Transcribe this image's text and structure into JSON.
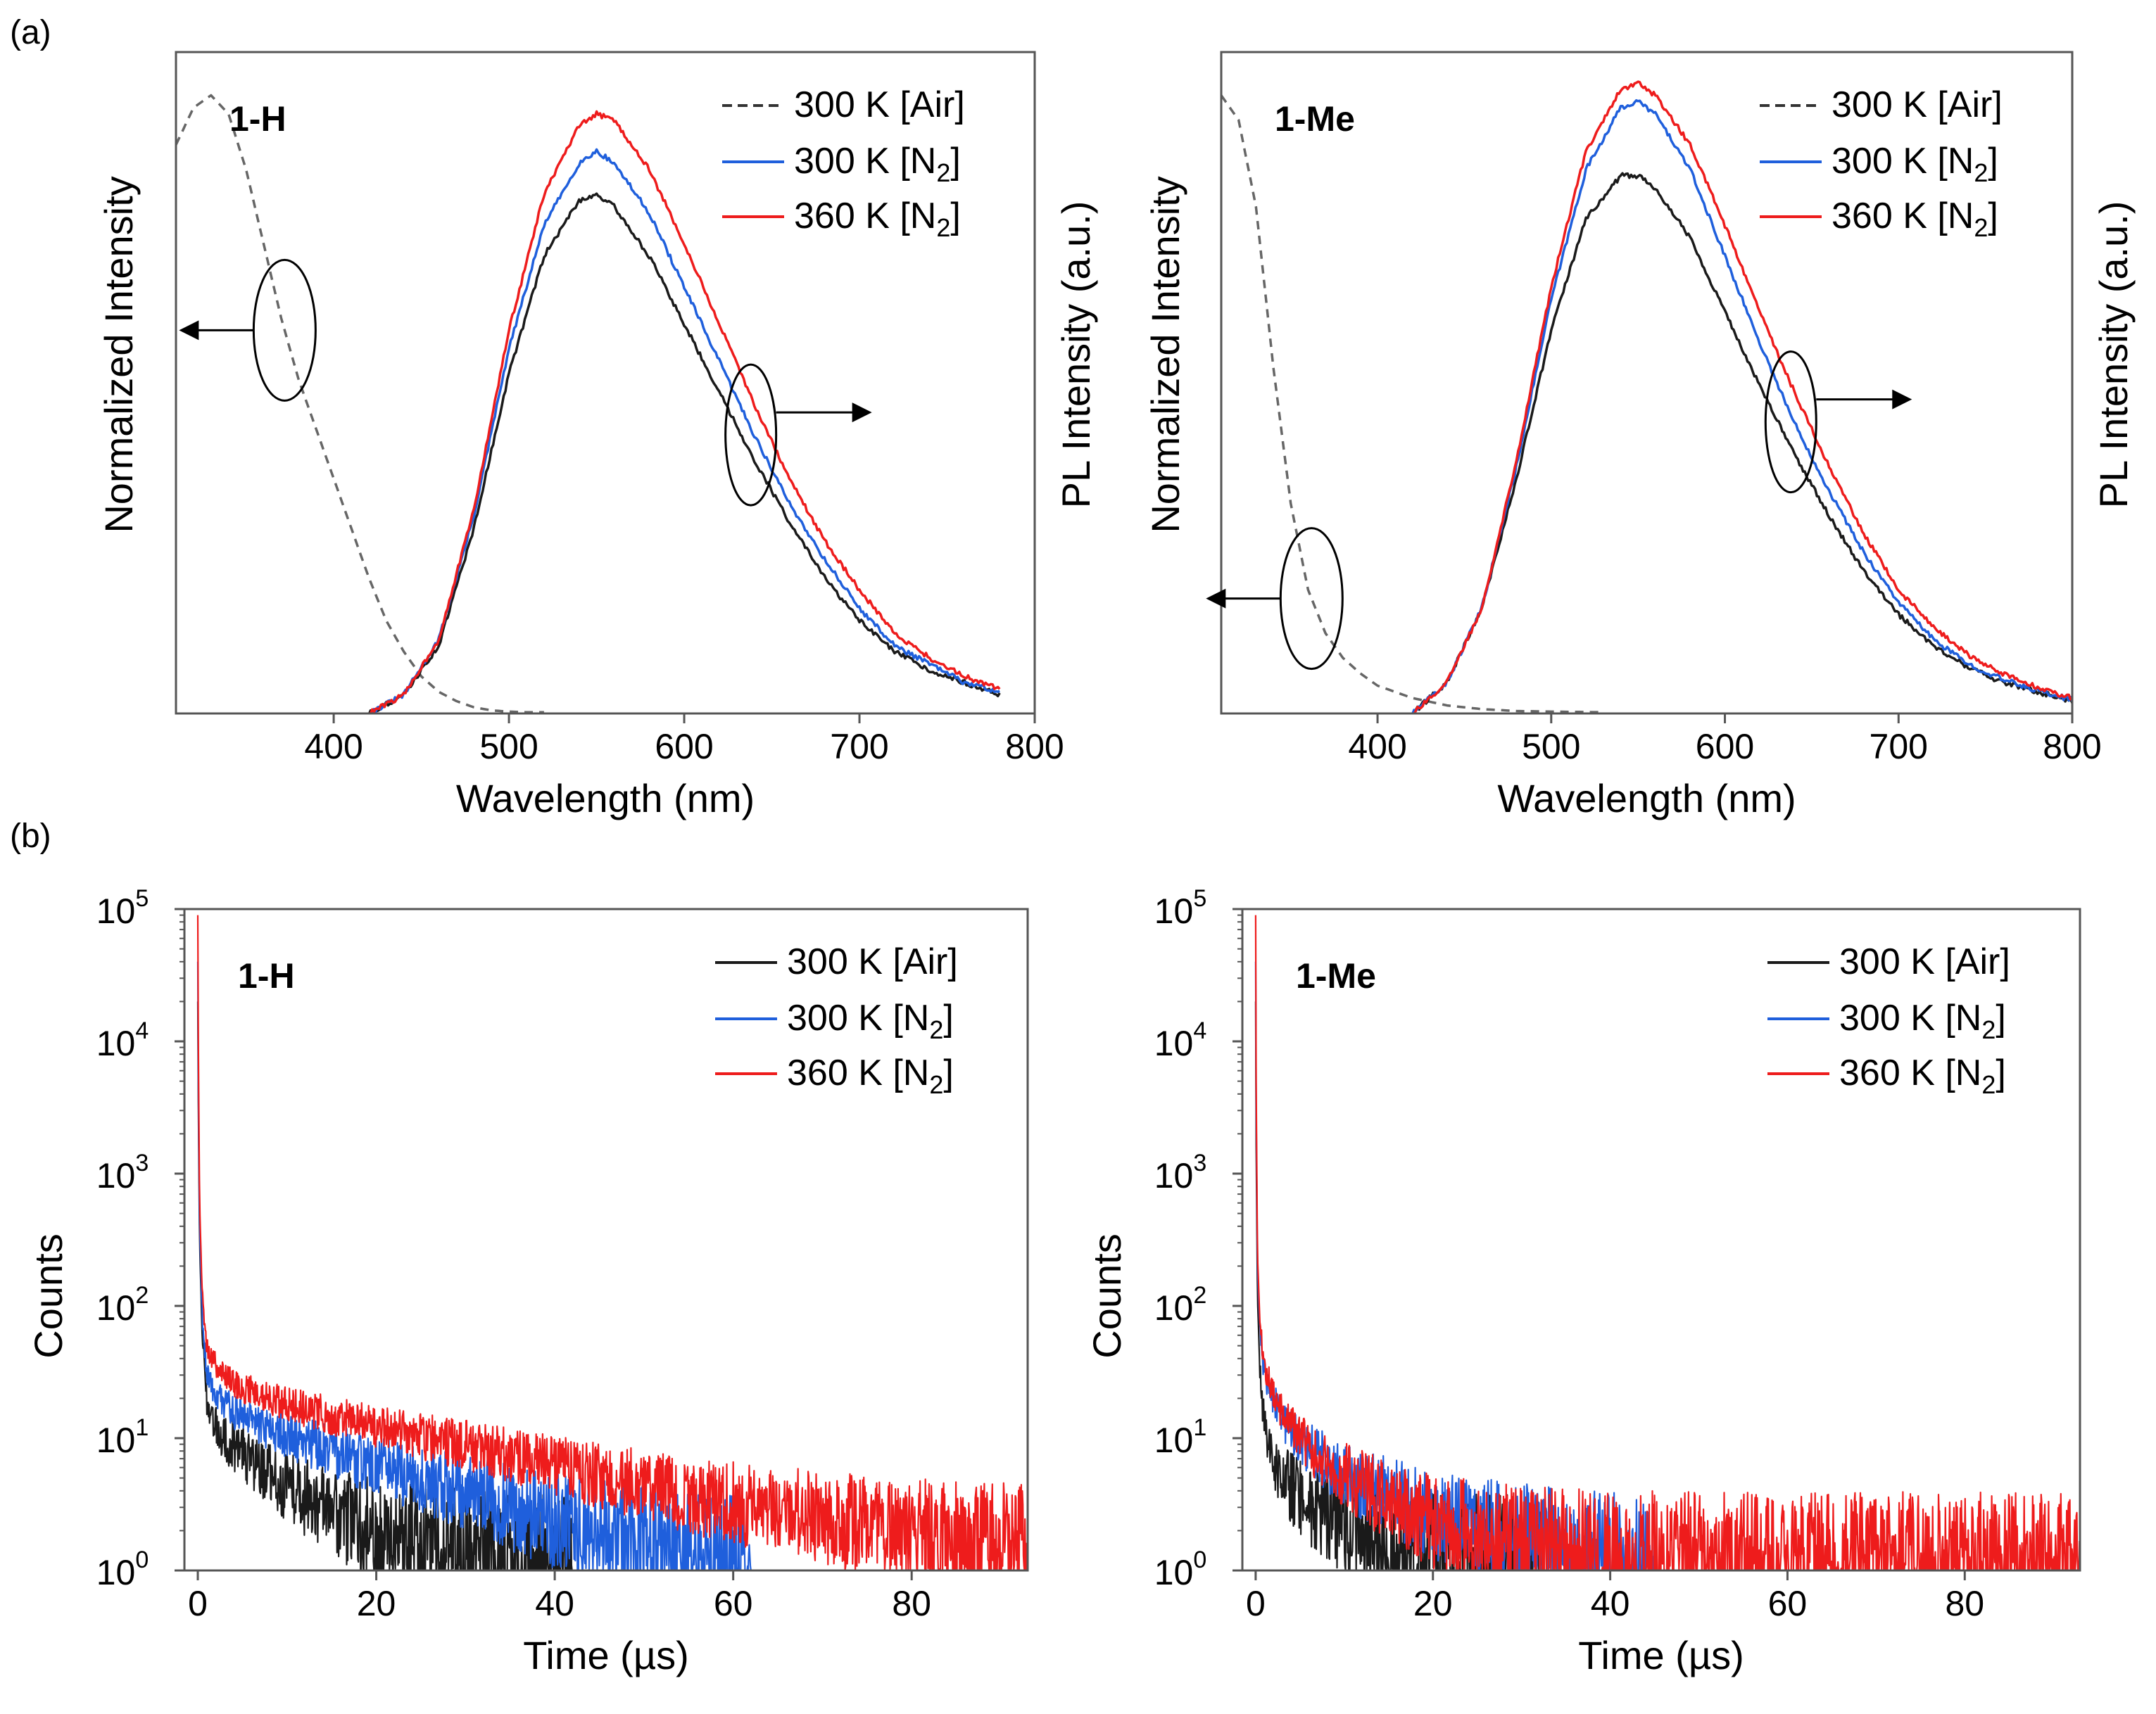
{
  "panel_labels": {
    "a": "(a)",
    "b": "(b)"
  },
  "colors": {
    "air": "#1a1a1a",
    "n2_300": "#1f5fdc",
    "n2_360": "#ee1c1c",
    "absorption": "#666666"
  },
  "chart_data": [
    {
      "id": "a-1H",
      "type": "line",
      "sample": "1-H",
      "xlabel": "Wavelength (nm)",
      "ylabel_left": "Normalized Intensity",
      "ylabel_right": "PL Intensity (a.u.)",
      "xlim": [
        310,
        800
      ],
      "ylim": [
        0,
        1.07
      ],
      "xticks": [
        "400",
        "500",
        "600",
        "700",
        "800"
      ],
      "xtick_values": [
        400,
        500,
        600,
        700,
        800
      ],
      "legend": [
        {
          "text": "300 K [Air]",
          "style": "dashed"
        },
        {
          "text": "300 K [N",
          "sub": "2",
          "close": "]",
          "style": "solid"
        },
        {
          "text": "360 K [N",
          "sub": "2",
          "close": "]",
          "style": "solid"
        }
      ],
      "annotations": [
        "absorption curve circled, arrow points to left axis",
        "emission curves circled, arrow points to right axis"
      ],
      "series": [
        {
          "name": "Absorption (300 K [Air])",
          "style": "dashed",
          "color_key": "absorption",
          "x": [
            310,
            320,
            330,
            340,
            350,
            360,
            370,
            380,
            390,
            400,
            410,
            420,
            430,
            440,
            450,
            460,
            470,
            480,
            490,
            500,
            510,
            520
          ],
          "y": [
            0.92,
            0.98,
            1.0,
            0.97,
            0.88,
            0.76,
            0.64,
            0.54,
            0.46,
            0.38,
            0.3,
            0.22,
            0.15,
            0.1,
            0.06,
            0.035,
            0.02,
            0.01,
            0.005,
            0.003,
            0.002,
            0.002
          ]
        },
        {
          "name": "300 K [Air]",
          "style": "solid",
          "color_key": "air",
          "x": [
            420,
            440,
            460,
            480,
            500,
            520,
            540,
            550,
            560,
            580,
            600,
            620,
            640,
            660,
            680,
            700,
            720,
            740,
            760,
            780
          ],
          "y": [
            0.0,
            0.03,
            0.11,
            0.3,
            0.55,
            0.74,
            0.83,
            0.84,
            0.82,
            0.74,
            0.63,
            0.52,
            0.41,
            0.31,
            0.22,
            0.15,
            0.1,
            0.07,
            0.05,
            0.03
          ]
        },
        {
          "name": "300 K [N2]",
          "style": "solid",
          "color_key": "n2_300",
          "x": [
            420,
            440,
            460,
            480,
            500,
            520,
            540,
            550,
            560,
            580,
            600,
            620,
            640,
            660,
            680,
            700,
            720,
            740,
            760,
            780
          ],
          "y": [
            0.0,
            0.03,
            0.12,
            0.32,
            0.59,
            0.79,
            0.89,
            0.91,
            0.89,
            0.81,
            0.69,
            0.57,
            0.45,
            0.34,
            0.25,
            0.17,
            0.11,
            0.08,
            0.05,
            0.035
          ]
        },
        {
          "name": "360 K [N2]",
          "style": "solid",
          "color_key": "n2_360",
          "x": [
            420,
            440,
            460,
            480,
            500,
            520,
            540,
            550,
            560,
            580,
            600,
            620,
            640,
            660,
            680,
            700,
            720,
            740,
            760,
            780
          ],
          "y": [
            0.0,
            0.03,
            0.12,
            0.33,
            0.62,
            0.84,
            0.95,
            0.97,
            0.96,
            0.88,
            0.76,
            0.63,
            0.5,
            0.38,
            0.28,
            0.2,
            0.13,
            0.09,
            0.06,
            0.04
          ]
        }
      ]
    },
    {
      "id": "a-1Me",
      "type": "line",
      "sample": "1-Me",
      "xlabel": "Wavelength (nm)",
      "ylabel_left": "Normalized Intensity",
      "ylabel_right": "PL Intensity (a.u.)",
      "xlim": [
        310,
        800
      ],
      "ylim": [
        0,
        1.07
      ],
      "xticks": [
        "400",
        "500",
        "600",
        "700",
        "800"
      ],
      "xtick_values": [
        400,
        500,
        600,
        700,
        800
      ],
      "legend": [
        {
          "text": "300 K [Air]",
          "style": "dashed"
        },
        {
          "text": "300 K [N",
          "sub": "2",
          "close": "]",
          "style": "solid"
        },
        {
          "text": "360 K [N",
          "sub": "2",
          "close": "]",
          "style": "solid"
        }
      ],
      "annotations": [
        "absorption curve circled, arrow points to left axis",
        "emission curves circled, arrow points to right axis"
      ],
      "series": [
        {
          "name": "Absorption (300 K [Air])",
          "style": "dashed",
          "color_key": "absorption",
          "x": [
            310,
            320,
            330,
            340,
            350,
            360,
            370,
            380,
            390,
            400,
            420,
            440,
            460,
            480,
            500,
            530
          ],
          "y": [
            1.0,
            0.96,
            0.82,
            0.56,
            0.34,
            0.2,
            0.13,
            0.09,
            0.065,
            0.045,
            0.025,
            0.013,
            0.007,
            0.004,
            0.003,
            0.002
          ]
        },
        {
          "name": "300 K [Air]",
          "style": "solid",
          "color_key": "air",
          "x": [
            420,
            440,
            460,
            480,
            500,
            520,
            540,
            550,
            560,
            580,
            600,
            620,
            640,
            660,
            680,
            700,
            720,
            740,
            760,
            780,
            800
          ],
          "y": [
            0.0,
            0.05,
            0.17,
            0.38,
            0.62,
            0.8,
            0.87,
            0.87,
            0.85,
            0.77,
            0.65,
            0.53,
            0.42,
            0.32,
            0.23,
            0.16,
            0.11,
            0.075,
            0.05,
            0.035,
            0.02
          ]
        },
        {
          "name": "300 K [N2]",
          "style": "solid",
          "color_key": "n2_300",
          "x": [
            420,
            440,
            460,
            480,
            500,
            520,
            540,
            550,
            560,
            580,
            600,
            620,
            640,
            660,
            680,
            700,
            720,
            740,
            760,
            780,
            800
          ],
          "y": [
            0.0,
            0.05,
            0.17,
            0.4,
            0.67,
            0.88,
            0.98,
            0.99,
            0.97,
            0.88,
            0.74,
            0.6,
            0.47,
            0.36,
            0.26,
            0.18,
            0.12,
            0.08,
            0.055,
            0.037,
            0.022
          ]
        },
        {
          "name": "360 K [N2]",
          "style": "solid",
          "color_key": "n2_360",
          "x": [
            420,
            440,
            460,
            480,
            500,
            520,
            540,
            550,
            560,
            580,
            600,
            620,
            640,
            660,
            680,
            700,
            720,
            740,
            760,
            780,
            800
          ],
          "y": [
            0.0,
            0.05,
            0.17,
            0.41,
            0.69,
            0.91,
            1.01,
            1.02,
            1.0,
            0.92,
            0.79,
            0.65,
            0.52,
            0.4,
            0.29,
            0.2,
            0.14,
            0.095,
            0.065,
            0.042,
            0.025
          ]
        }
      ]
    },
    {
      "id": "b-1H",
      "type": "line",
      "sample": "1-H",
      "xlabel": "Time (µs)",
      "ylabel": "Counts",
      "yscale": "log",
      "xlim": [
        -1.5,
        93
      ],
      "ylim": [
        1,
        100000
      ],
      "xticks": [
        "0",
        "20",
        "40",
        "60",
        "80"
      ],
      "xtick_values": [
        0,
        20,
        40,
        60,
        80
      ],
      "yticks": [
        {
          "base": "10",
          "exp": "0"
        },
        {
          "base": "10",
          "exp": "1"
        },
        {
          "base": "10",
          "exp": "2"
        },
        {
          "base": "10",
          "exp": "3"
        },
        {
          "base": "10",
          "exp": "4"
        },
        {
          "base": "10",
          "exp": "5"
        }
      ],
      "ytick_values": [
        1,
        10,
        100,
        1000,
        10000,
        100000
      ],
      "legend": [
        {
          "text": "300 K [Air]"
        },
        {
          "text": "300 K [N",
          "sub": "2",
          "close": "]"
        },
        {
          "text": "360 K [N",
          "sub": "2",
          "close": "]"
        }
      ],
      "series": [
        {
          "name": "300 K [Air]",
          "color_key": "air",
          "x": [
            0,
            0.05,
            0.2,
            0.5,
            1,
            2,
            3,
            5,
            8,
            12,
            16,
            20,
            25,
            30,
            35,
            40,
            42
          ],
          "y": [
            20000,
            4000,
            300,
            60,
            20,
            13,
            10,
            7.5,
            5.2,
            3.6,
            2.6,
            2.0,
            1.6,
            1.35,
            1.15,
            1.02,
            1.0
          ]
        },
        {
          "name": "300 K [N2]",
          "color_key": "n2_300",
          "x": [
            0,
            0.05,
            0.2,
            0.5,
            1,
            2,
            3,
            5,
            10,
            15,
            20,
            25,
            30,
            35,
            40,
            45,
            50,
            55,
            60,
            62
          ],
          "y": [
            40000,
            6000,
            400,
            80,
            32,
            22,
            18,
            14.5,
            10.5,
            8.0,
            6.2,
            4.8,
            3.8,
            3.0,
            2.4,
            1.9,
            1.5,
            1.22,
            1.03,
            1.0
          ]
        },
        {
          "name": "360 K [N2]",
          "color_key": "n2_360",
          "x": [
            0,
            0.05,
            0.2,
            0.5,
            1,
            2,
            3,
            5,
            10,
            20,
            30,
            40,
            50,
            60,
            70,
            80,
            90,
            93
          ],
          "y": [
            90000,
            12000,
            600,
            120,
            48,
            36,
            30,
            24,
            18,
            12.2,
            8.8,
            6.2,
            4.4,
            3.2,
            2.5,
            2.0,
            1.7,
            1.6
          ]
        }
      ]
    },
    {
      "id": "b-1Me",
      "type": "line",
      "sample": "1-Me",
      "xlabel": "Time (µs)",
      "ylabel": "Counts",
      "yscale": "log",
      "xlim": [
        -1.5,
        93
      ],
      "ylim": [
        1,
        100000
      ],
      "xticks": [
        "0",
        "20",
        "40",
        "60",
        "80"
      ],
      "xtick_values": [
        0,
        20,
        40,
        60,
        80
      ],
      "yticks": [
        {
          "base": "10",
          "exp": "0"
        },
        {
          "base": "10",
          "exp": "1"
        },
        {
          "base": "10",
          "exp": "2"
        },
        {
          "base": "10",
          "exp": "3"
        },
        {
          "base": "10",
          "exp": "4"
        },
        {
          "base": "10",
          "exp": "5"
        }
      ],
      "ytick_values": [
        1,
        10,
        100,
        1000,
        10000,
        100000
      ],
      "legend": [
        {
          "text": "300 K [Air]"
        },
        {
          "text": "300 K [N",
          "sub": "2",
          "close": "]"
        },
        {
          "text": "360 K [N",
          "sub": "2",
          "close": "]"
        }
      ],
      "series": [
        {
          "name": "300 K [Air]",
          "color_key": "air",
          "x": [
            0,
            0.05,
            0.2,
            0.5,
            1,
            2,
            3,
            5,
            8,
            12,
            16,
            20,
            25,
            30,
            33
          ],
          "y": [
            20000,
            2000,
            120,
            30,
            12,
            7,
            5,
            3.6,
            2.6,
            1.9,
            1.5,
            1.28,
            1.12,
            1.03,
            1.0
          ]
        },
        {
          "name": "300 K [N2]",
          "color_key": "n2_300",
          "x": [
            0,
            0.05,
            0.2,
            0.5,
            1,
            2,
            3,
            5,
            8,
            12,
            16,
            20,
            25,
            30,
            35,
            40,
            45
          ],
          "y": [
            40000,
            4000,
            200,
            60,
            30,
            20,
            14,
            9.5,
            6.5,
            4.5,
            3.4,
            2.7,
            2.1,
            1.7,
            1.4,
            1.18,
            1.05
          ]
        },
        {
          "name": "360 K [N2]",
          "color_key": "n2_360",
          "x": [
            0,
            0.05,
            0.2,
            0.5,
            1,
            2,
            3,
            5,
            8,
            12,
            16,
            20,
            25,
            30,
            35,
            40,
            50,
            60,
            70,
            80,
            93
          ],
          "y": [
            90000,
            6000,
            250,
            70,
            35,
            22,
            15,
            10,
            6.5,
            4.3,
            3.1,
            2.4,
            1.9,
            1.6,
            1.42,
            1.3,
            1.22,
            1.2,
            1.2,
            1.2,
            1.2
          ]
        }
      ]
    }
  ]
}
